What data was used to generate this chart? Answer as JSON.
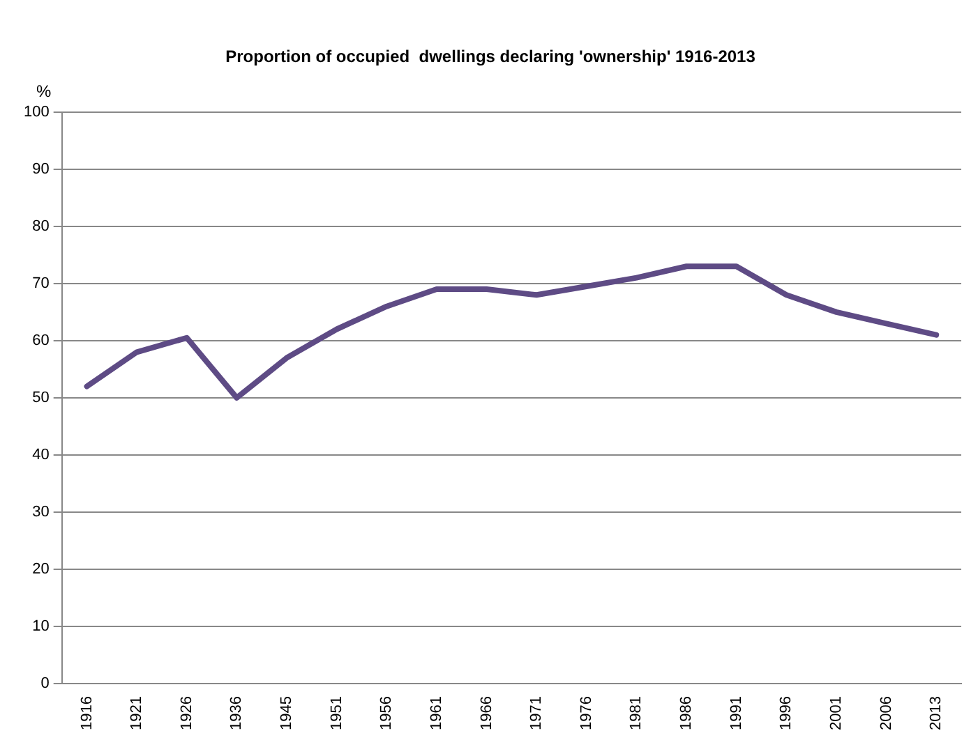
{
  "chart_data": {
    "type": "line",
    "title": "Proportion of occupied  dwellings declaring 'ownership' 1916-2013",
    "ylabel": "%",
    "categories": [
      "1916",
      "1921",
      "1926",
      "1936",
      "1945",
      "1951",
      "1956",
      "1961",
      "1966",
      "1971",
      "1976",
      "1981",
      "1986",
      "1991",
      "1996",
      "2001",
      "2006",
      "2013"
    ],
    "series": [
      {
        "color": "#5e4b85",
        "values": [
          52,
          58,
          60.5,
          50,
          57,
          62,
          66,
          69,
          69,
          68,
          69.5,
          71,
          73,
          73,
          68,
          65,
          63,
          61
        ]
      }
    ],
    "ylim": [
      0,
      100
    ],
    "yticks": [
      0,
      10,
      20,
      30,
      40,
      50,
      60,
      70,
      80,
      90,
      100
    ],
    "grid": "y",
    "legend": false,
    "marker": "none",
    "line_style": "solid"
  }
}
